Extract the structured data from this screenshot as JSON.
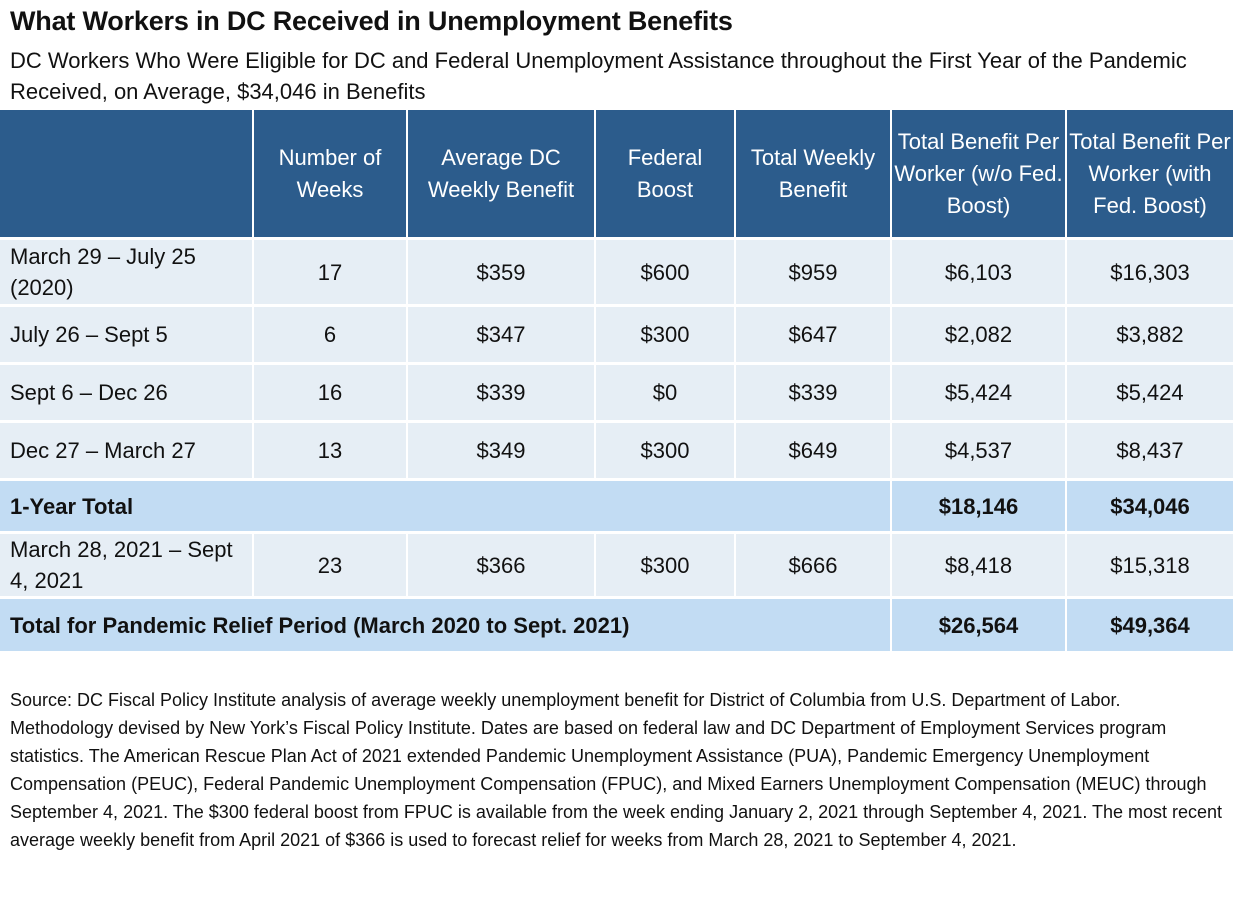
{
  "title": "What Workers in DC Received in Unemployment Benefits",
  "subtitle": "DC Workers Who Were Eligible for DC and Federal Unemployment Assistance throughout the First Year of the Pandemic Received, on Average, $34,046 in Benefits",
  "chart_data": {
    "type": "table",
    "title": "What Workers in DC Received in Unemployment Benefits",
    "subtitle": "DC Workers Who Were Eligible for DC and Federal Unemployment Assistance throughout the First Year of the Pandemic Received, on Average, $34,046 in Benefits",
    "columns": [
      "",
      "Number of Weeks",
      "Average DC Weekly Benefit",
      "Federal Boost",
      "Total Weekly Benefit",
      "Total Benefit Per Worker (w/o Fed. Boost)",
      "Total Benefit Per Worker (with Fed. Boost)"
    ],
    "rows": [
      {
        "period": "March 29 – July 25 (2020)",
        "weeks": "17",
        "avg_dc": "$359",
        "fed_boost": "$600",
        "total_weekly": "$959",
        "total_wo": "$6,103",
        "total_with": "$16,303"
      },
      {
        "period": "July 26 – Sept 5",
        "weeks": "6",
        "avg_dc": "$347",
        "fed_boost": "$300",
        "total_weekly": "$647",
        "total_wo": "$2,082",
        "total_with": "$3,882"
      },
      {
        "period": "Sept 6 – Dec 26",
        "weeks": "16",
        "avg_dc": "$339",
        "fed_boost": "$0",
        "total_weekly": "$339",
        "total_wo": "$5,424",
        "total_with": "$5,424"
      },
      {
        "period": "Dec 27 – March 27",
        "weeks": "13",
        "avg_dc": "$349",
        "fed_boost": "$300",
        "total_weekly": "$649",
        "total_wo": "$4,537",
        "total_with": "$8,437"
      },
      {
        "period": "1-Year Total",
        "weeks": "",
        "avg_dc": "",
        "fed_boost": "",
        "total_weekly": "",
        "total_wo": "$18,146",
        "total_with": "$34,046"
      },
      {
        "period": "March 28, 2021 – Sept 4, 2021",
        "weeks": "23",
        "avg_dc": "$366",
        "fed_boost": "$300",
        "total_weekly": "$666",
        "total_wo": "$8,418",
        "total_with": "$15,318"
      },
      {
        "period": "Total for Pandemic Relief Period (March 2020 to Sept. 2021)",
        "weeks": "",
        "avg_dc": "",
        "fed_boost": "",
        "total_weekly": "",
        "total_wo": "$26,564",
        "total_with": "$49,364"
      }
    ]
  },
  "source": "Source: DC Fiscal Policy Institute analysis of average weekly unemployment benefit for District of Columbia from U.S. Department of Labor. Methodology devised by New York’s Fiscal Policy Institute. Dates are based on federal law and DC Department of Employment Services program statistics. The American Rescue Plan Act of 2021 extended Pandemic Unemployment Assistance (PUA), Pandemic Emergency Unemployment Compensation (PEUC), Federal Pandemic Unemployment Compensation (FPUC), and Mixed Earners Unemployment Compensation (MEUC) through September 4, 2021. The $300 federal boost from FPUC is available from the week ending January 2, 2021 through September 4, 2021. The most recent average weekly benefit from April 2021 of $366 is used to forecast relief for weeks from March 28, 2021 to September 4, 2021.",
  "colors": {
    "header_bg": "#2c5c8c",
    "row_bg": "#e6eef5",
    "total_bg": "#c2dcf3"
  }
}
